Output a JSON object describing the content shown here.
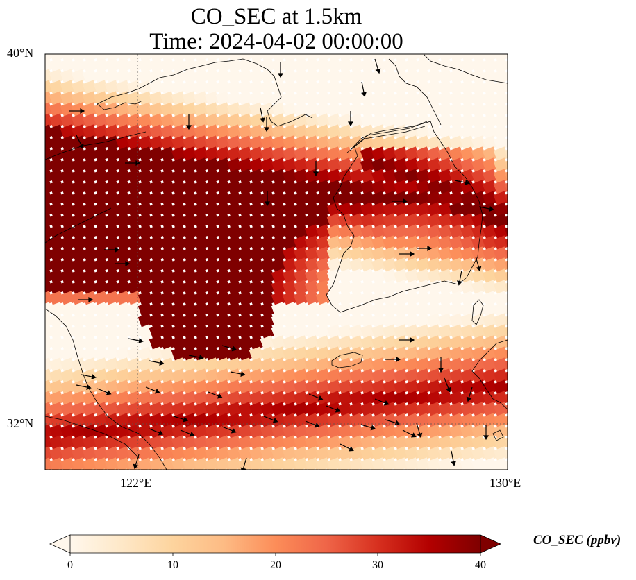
{
  "title": {
    "line1": "CO_SEC at 1.5km",
    "line2": "Time: 2024-04-02 00:00:00"
  },
  "axes": {
    "lat_labels": [
      "40°N",
      "32°N"
    ],
    "lon_labels": [
      "122°E",
      "130°E"
    ],
    "lat_range": [
      31,
      40
    ],
    "lon_range": [
      120,
      130
    ],
    "gridlines": "dotted"
  },
  "colorbar": {
    "label": "CO_SEC (ppbv)",
    "ticks": [
      "0",
      "10",
      "20",
      "30",
      "40"
    ],
    "range": [
      0,
      40
    ],
    "extend": "both",
    "colormap": [
      "#fff7ec",
      "#fee8c8",
      "#fdd49e",
      "#fdbb84",
      "#fc8d59",
      "#ef6548",
      "#d7301f",
      "#b30000",
      "#7f0000"
    ]
  },
  "layers": {
    "field": "CO_SEC concentration",
    "vectors": "wind arrows",
    "coastline_color": "#000000"
  }
}
